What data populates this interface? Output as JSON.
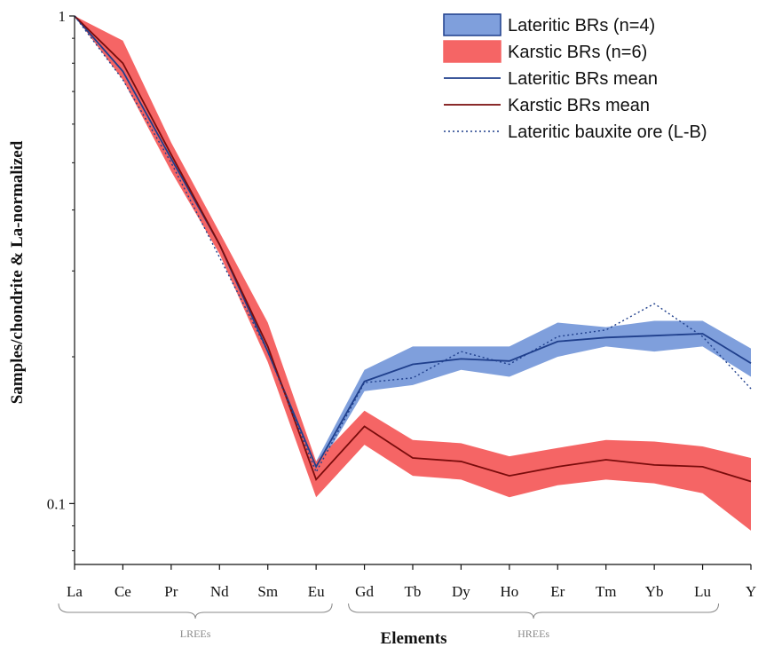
{
  "chart_data": {
    "type": "line",
    "title": "",
    "xlabel": "Elements",
    "ylabel": "Samples/chondrite & La-normalized",
    "y_scale": "log",
    "ylim": [
      0.075,
      1.0
    ],
    "y_ticks": [
      {
        "value": 1,
        "label": "1"
      },
      {
        "value": 0.1,
        "label": "0.1"
      }
    ],
    "categories": [
      "La",
      "Ce",
      "Pr",
      "Nd",
      "Sm",
      "Eu",
      "Gd",
      "Tb",
      "Dy",
      "Ho",
      "Er",
      "Tm",
      "Yb",
      "Lu",
      "Y"
    ],
    "groups": [
      {
        "label": "LREEs",
        "from": "La",
        "to": "Eu"
      },
      {
        "label": "HREEs",
        "from": "Gd",
        "to": "Lu"
      }
    ],
    "legend_position": "top-right",
    "series": [
      {
        "name": "Lateritic BRs (n=4)",
        "kind": "band",
        "fill": "#7f9fdc",
        "stroke": "#3a5da8",
        "upper": [
          1.0,
          0.8,
          0.52,
          0.35,
          0.215,
          0.122,
          0.188,
          0.21,
          0.21,
          0.21,
          0.235,
          0.23,
          0.237,
          0.237,
          0.208
        ],
        "lower": [
          1.0,
          0.74,
          0.495,
          0.33,
          0.2,
          0.116,
          0.17,
          0.175,
          0.188,
          0.182,
          0.2,
          0.21,
          0.205,
          0.21,
          0.182
        ]
      },
      {
        "name": "Karstic BRs (n=6)",
        "kind": "band",
        "fill": "#f56565",
        "stroke": "#f56565",
        "upper": [
          1.0,
          0.89,
          0.55,
          0.36,
          0.235,
          0.122,
          0.155,
          0.135,
          0.133,
          0.125,
          0.13,
          0.135,
          0.134,
          0.131,
          0.124
        ],
        "lower": [
          1.0,
          0.74,
          0.48,
          0.325,
          0.195,
          0.103,
          0.132,
          0.114,
          0.112,
          0.103,
          0.109,
          0.112,
          0.11,
          0.105,
          0.088
        ]
      },
      {
        "name": "Lateritic BRs mean",
        "kind": "line",
        "color": "#1f3f8c",
        "values": [
          1.0,
          0.77,
          0.51,
          0.34,
          0.205,
          0.119,
          0.178,
          0.193,
          0.198,
          0.196,
          0.215,
          0.219,
          0.221,
          0.223,
          0.194
        ]
      },
      {
        "name": "Karstic BRs mean",
        "kind": "line",
        "color": "#7a0c0c",
        "values": [
          1.0,
          0.8,
          0.52,
          0.34,
          0.21,
          0.112,
          0.144,
          0.124,
          0.122,
          0.114,
          0.119,
          0.123,
          0.12,
          0.119,
          0.111
        ]
      },
      {
        "name": "Lateritic bauxite ore (L-B)",
        "kind": "dotted",
        "color": "#1f3f8c",
        "values": [
          1.0,
          0.74,
          0.5,
          0.32,
          0.205,
          0.116,
          0.177,
          0.181,
          0.205,
          0.193,
          0.22,
          0.227,
          0.257,
          0.22,
          0.172
        ]
      }
    ]
  }
}
